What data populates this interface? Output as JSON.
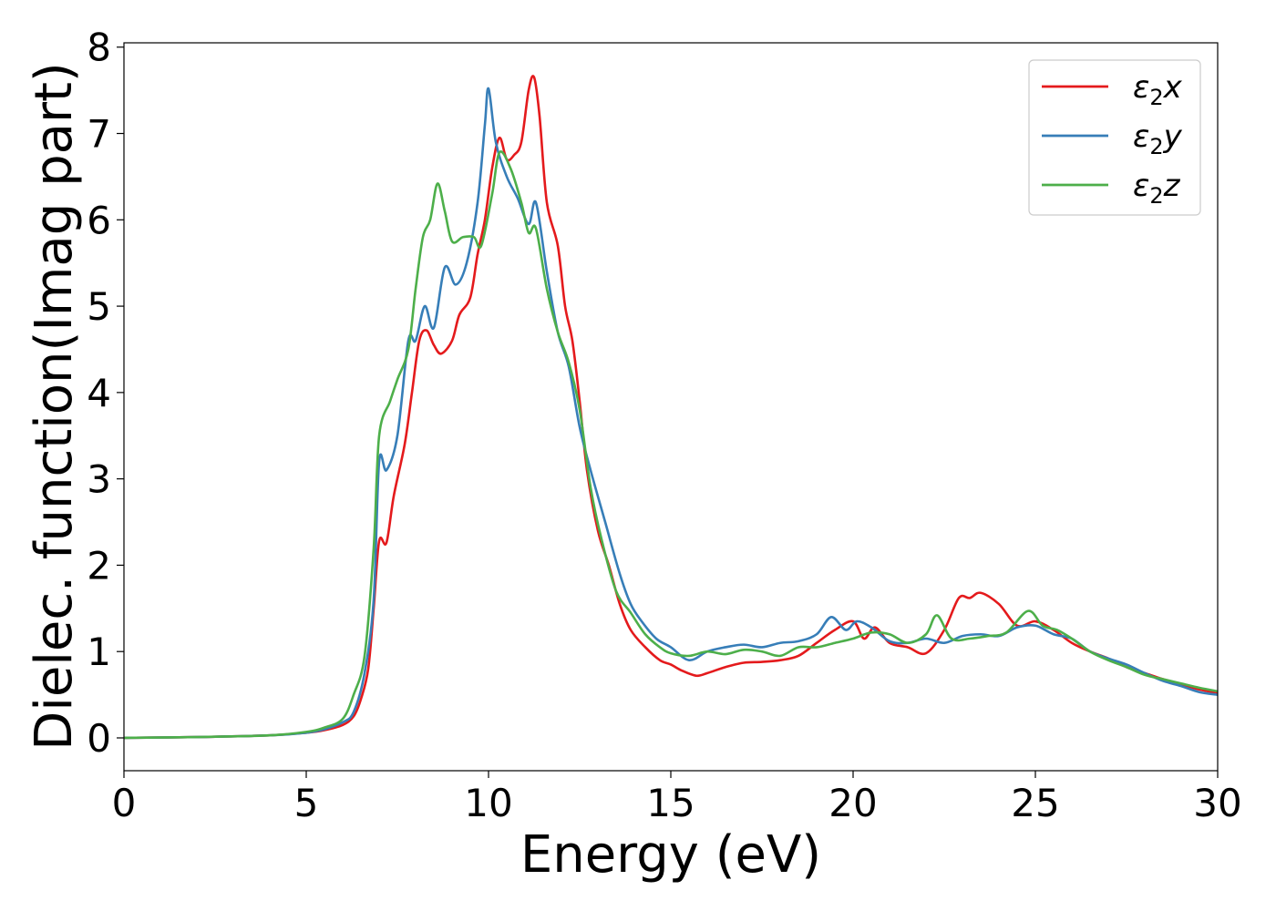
{
  "chart_data": {
    "type": "line",
    "title": "",
    "xlabel": "Energy (eV)",
    "ylabel": "Dielec. function(Imag part)",
    "xlim": [
      0,
      30
    ],
    "ylim": [
      -0.38,
      8.05
    ],
    "xticks": [
      0,
      5,
      10,
      15,
      20,
      25,
      30
    ],
    "yticks": [
      0,
      1,
      2,
      3,
      4,
      5,
      6,
      7,
      8
    ],
    "grid": false,
    "legend_position": "top-right",
    "series": [
      {
        "name": "ε₂x",
        "legend_base": "ε",
        "legend_sub": "2",
        "legend_var": "x",
        "color": "#e41a1c",
        "points": [
          [
            0,
            0
          ],
          [
            2,
            0.01
          ],
          [
            4,
            0.03
          ],
          [
            5,
            0.06
          ],
          [
            5.5,
            0.09
          ],
          [
            6,
            0.15
          ],
          [
            6.3,
            0.25
          ],
          [
            6.5,
            0.45
          ],
          [
            6.7,
            0.8
          ],
          [
            6.85,
            1.5
          ],
          [
            7,
            2.28
          ],
          [
            7.2,
            2.26
          ],
          [
            7.4,
            2.8
          ],
          [
            7.7,
            3.4
          ],
          [
            7.9,
            4.0
          ],
          [
            8.1,
            4.6
          ],
          [
            8.3,
            4.72
          ],
          [
            8.5,
            4.55
          ],
          [
            8.7,
            4.45
          ],
          [
            9,
            4.6
          ],
          [
            9.2,
            4.9
          ],
          [
            9.5,
            5.1
          ],
          [
            9.7,
            5.6
          ],
          [
            9.9,
            6.0
          ],
          [
            10.1,
            6.6
          ],
          [
            10.3,
            6.95
          ],
          [
            10.5,
            6.7
          ],
          [
            10.7,
            6.75
          ],
          [
            10.9,
            6.9
          ],
          [
            11.1,
            7.5
          ],
          [
            11.25,
            7.65
          ],
          [
            11.4,
            7.2
          ],
          [
            11.6,
            6.2
          ],
          [
            11.9,
            5.7
          ],
          [
            12.1,
            5.0
          ],
          [
            12.3,
            4.6
          ],
          [
            12.5,
            3.9
          ],
          [
            12.7,
            3.1
          ],
          [
            13,
            2.4
          ],
          [
            13.3,
            2.0
          ],
          [
            13.6,
            1.55
          ],
          [
            13.9,
            1.25
          ],
          [
            14.3,
            1.05
          ],
          [
            14.7,
            0.9
          ],
          [
            15,
            0.85
          ],
          [
            15.3,
            0.78
          ],
          [
            15.7,
            0.72
          ],
          [
            16,
            0.75
          ],
          [
            16.5,
            0.82
          ],
          [
            17,
            0.87
          ],
          [
            17.5,
            0.88
          ],
          [
            18,
            0.9
          ],
          [
            18.5,
            0.95
          ],
          [
            19,
            1.1
          ],
          [
            19.5,
            1.25
          ],
          [
            20,
            1.35
          ],
          [
            20.3,
            1.15
          ],
          [
            20.6,
            1.28
          ],
          [
            21,
            1.1
          ],
          [
            21.5,
            1.05
          ],
          [
            22,
            0.98
          ],
          [
            22.5,
            1.25
          ],
          [
            22.9,
            1.62
          ],
          [
            23.2,
            1.62
          ],
          [
            23.5,
            1.68
          ],
          [
            24,
            1.55
          ],
          [
            24.5,
            1.3
          ],
          [
            25,
            1.35
          ],
          [
            25.5,
            1.25
          ],
          [
            26,
            1.1
          ],
          [
            26.5,
            1.0
          ],
          [
            27,
            0.92
          ],
          [
            27.5,
            0.82
          ],
          [
            28,
            0.75
          ],
          [
            28.5,
            0.68
          ],
          [
            29,
            0.62
          ],
          [
            29.5,
            0.56
          ],
          [
            30,
            0.52
          ]
        ]
      },
      {
        "name": "ε₂y",
        "legend_base": "ε",
        "legend_sub": "2",
        "legend_var": "y",
        "color": "#377eb8",
        "points": [
          [
            0,
            0
          ],
          [
            2,
            0.01
          ],
          [
            4,
            0.03
          ],
          [
            5,
            0.06
          ],
          [
            5.5,
            0.1
          ],
          [
            6,
            0.18
          ],
          [
            6.3,
            0.3
          ],
          [
            6.6,
            0.75
          ],
          [
            6.85,
            1.6
          ],
          [
            7,
            3.2
          ],
          [
            7.2,
            3.1
          ],
          [
            7.5,
            3.5
          ],
          [
            7.8,
            4.6
          ],
          [
            8,
            4.6
          ],
          [
            8.25,
            5.0
          ],
          [
            8.5,
            4.75
          ],
          [
            8.8,
            5.45
          ],
          [
            9.1,
            5.25
          ],
          [
            9.4,
            5.5
          ],
          [
            9.7,
            6.2
          ],
          [
            9.9,
            7.1
          ],
          [
            10,
            7.52
          ],
          [
            10.2,
            6.9
          ],
          [
            10.5,
            6.5
          ],
          [
            10.8,
            6.25
          ],
          [
            11.1,
            5.95
          ],
          [
            11.3,
            6.2
          ],
          [
            11.6,
            5.4
          ],
          [
            11.9,
            4.7
          ],
          [
            12.2,
            4.3
          ],
          [
            12.5,
            3.6
          ],
          [
            12.8,
            3.1
          ],
          [
            13.2,
            2.5
          ],
          [
            13.6,
            1.9
          ],
          [
            13.9,
            1.55
          ],
          [
            14.2,
            1.35
          ],
          [
            14.6,
            1.15
          ],
          [
            15,
            1.05
          ],
          [
            15.5,
            0.9
          ],
          [
            16,
            1.0
          ],
          [
            16.5,
            1.05
          ],
          [
            17,
            1.08
          ],
          [
            17.5,
            1.05
          ],
          [
            18,
            1.1
          ],
          [
            18.5,
            1.12
          ],
          [
            19,
            1.2
          ],
          [
            19.4,
            1.4
          ],
          [
            19.8,
            1.25
          ],
          [
            20.1,
            1.35
          ],
          [
            20.5,
            1.28
          ],
          [
            21,
            1.12
          ],
          [
            21.5,
            1.1
          ],
          [
            22,
            1.15
          ],
          [
            22.5,
            1.1
          ],
          [
            23,
            1.18
          ],
          [
            23.5,
            1.2
          ],
          [
            24,
            1.18
          ],
          [
            24.5,
            1.28
          ],
          [
            25,
            1.3
          ],
          [
            25.5,
            1.2
          ],
          [
            26,
            1.15
          ],
          [
            26.5,
            1.0
          ],
          [
            27,
            0.92
          ],
          [
            27.5,
            0.85
          ],
          [
            28,
            0.75
          ],
          [
            28.5,
            0.66
          ],
          [
            29,
            0.6
          ],
          [
            29.5,
            0.53
          ],
          [
            30,
            0.5
          ]
        ]
      },
      {
        "name": "ε₂z",
        "legend_base": "ε",
        "legend_sub": "2",
        "legend_var": "z",
        "color": "#4daf4a",
        "points": [
          [
            0,
            0
          ],
          [
            2,
            0.01
          ],
          [
            4,
            0.03
          ],
          [
            5,
            0.07
          ],
          [
            5.5,
            0.12
          ],
          [
            6,
            0.22
          ],
          [
            6.3,
            0.5
          ],
          [
            6.6,
            0.95
          ],
          [
            6.85,
            2.2
          ],
          [
            7,
            3.5
          ],
          [
            7.3,
            3.9
          ],
          [
            7.5,
            4.15
          ],
          [
            7.8,
            4.5
          ],
          [
            8,
            5.2
          ],
          [
            8.2,
            5.8
          ],
          [
            8.4,
            6.0
          ],
          [
            8.6,
            6.42
          ],
          [
            8.8,
            6.1
          ],
          [
            9,
            5.75
          ],
          [
            9.3,
            5.8
          ],
          [
            9.6,
            5.8
          ],
          [
            9.8,
            5.7
          ],
          [
            10.1,
            6.3
          ],
          [
            10.3,
            6.78
          ],
          [
            10.6,
            6.6
          ],
          [
            10.9,
            6.2
          ],
          [
            11.1,
            5.85
          ],
          [
            11.3,
            5.9
          ],
          [
            11.6,
            5.2
          ],
          [
            11.9,
            4.7
          ],
          [
            12.2,
            4.35
          ],
          [
            12.5,
            3.8
          ],
          [
            12.8,
            2.9
          ],
          [
            13.1,
            2.3
          ],
          [
            13.5,
            1.7
          ],
          [
            13.9,
            1.45
          ],
          [
            14.3,
            1.2
          ],
          [
            14.7,
            1.05
          ],
          [
            15,
            0.98
          ],
          [
            15.5,
            0.95
          ],
          [
            16,
            1.0
          ],
          [
            16.5,
            0.97
          ],
          [
            17,
            1.02
          ],
          [
            17.5,
            1.0
          ],
          [
            18,
            0.95
          ],
          [
            18.5,
            1.05
          ],
          [
            19,
            1.05
          ],
          [
            19.5,
            1.1
          ],
          [
            20,
            1.15
          ],
          [
            20.5,
            1.22
          ],
          [
            21,
            1.2
          ],
          [
            21.5,
            1.1
          ],
          [
            22,
            1.2
          ],
          [
            22.3,
            1.42
          ],
          [
            22.7,
            1.15
          ],
          [
            23.2,
            1.15
          ],
          [
            23.7,
            1.18
          ],
          [
            24.2,
            1.22
          ],
          [
            24.8,
            1.47
          ],
          [
            25.2,
            1.3
          ],
          [
            25.6,
            1.25
          ],
          [
            26,
            1.15
          ],
          [
            26.5,
            1.0
          ],
          [
            27,
            0.9
          ],
          [
            27.5,
            0.82
          ],
          [
            28,
            0.73
          ],
          [
            28.5,
            0.68
          ],
          [
            29,
            0.63
          ],
          [
            29.5,
            0.58
          ],
          [
            30,
            0.54
          ]
        ]
      }
    ]
  }
}
